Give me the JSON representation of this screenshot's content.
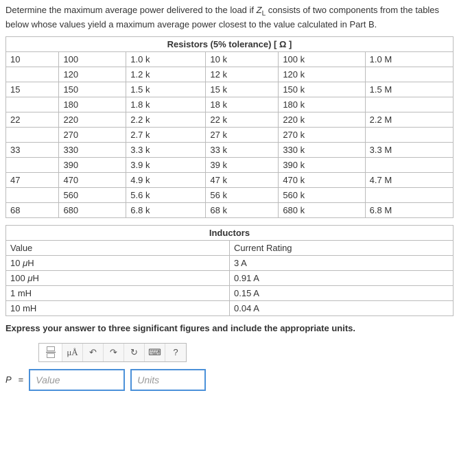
{
  "prompt_text": "Determine the maximum average power delivered to the load if $Z_L$ consists of two components from the tables below whose values yield a maximum average power closest to the value calculated in Part B.",
  "resistors": {
    "header": "Resistors (5% tolerance) [ Ω ]",
    "rows": [
      [
        "10",
        "100",
        "1.0 k",
        "10 k",
        "100 k",
        "1.0 M"
      ],
      [
        "",
        "120",
        "1.2 k",
        "12 k",
        "120 k",
        ""
      ],
      [
        "15",
        "150",
        "1.5 k",
        "15 k",
        "150 k",
        "1.5 M"
      ],
      [
        "",
        "180",
        "1.8 k",
        "18 k",
        "180 k",
        ""
      ],
      [
        "22",
        "220",
        "2.2 k",
        "22 k",
        "220 k",
        "2.2 M"
      ],
      [
        "",
        "270",
        "2.7 k",
        "27 k",
        "270 k",
        ""
      ],
      [
        "33",
        "330",
        "3.3 k",
        "33 k",
        "330 k",
        "3.3 M"
      ],
      [
        "",
        "390",
        "3.9 k",
        "39 k",
        "390 k",
        ""
      ],
      [
        "47",
        "470",
        "4.9 k",
        "47 k",
        "470 k",
        "4.7 M"
      ],
      [
        "",
        "560",
        "5.6 k",
        "56 k",
        "560 k",
        ""
      ],
      [
        "68",
        "680",
        "6.8 k",
        "68 k",
        "680 k",
        "6.8 M"
      ]
    ],
    "columns": 6,
    "border_color": "#bbbbbb"
  },
  "inductors": {
    "header": "Inductors",
    "col_value": "Value",
    "col_rating": "Current Rating",
    "rows": [
      [
        "10 μH",
        "3 A"
      ],
      [
        "100 μH",
        "0.91 A"
      ],
      [
        "1 mH",
        "0.15 A"
      ],
      [
        "10 mH",
        "0.04 A"
      ]
    ]
  },
  "instruction": "Express your answer to three significant figures and include the appropriate units.",
  "toolbar": {
    "mu_label": "μÅ",
    "undo": "↶",
    "redo": "↷",
    "reset": "↻",
    "keyboard": "⌨",
    "help": "?"
  },
  "answer": {
    "label": "P",
    "equals": "=",
    "value_placeholder": "Value",
    "units_placeholder": "Units"
  },
  "style": {
    "accent_color": "#4a90d9",
    "bg": "#ffffff",
    "text_color": "#333333",
    "font_size_body": 13,
    "font_size_header": 13
  }
}
